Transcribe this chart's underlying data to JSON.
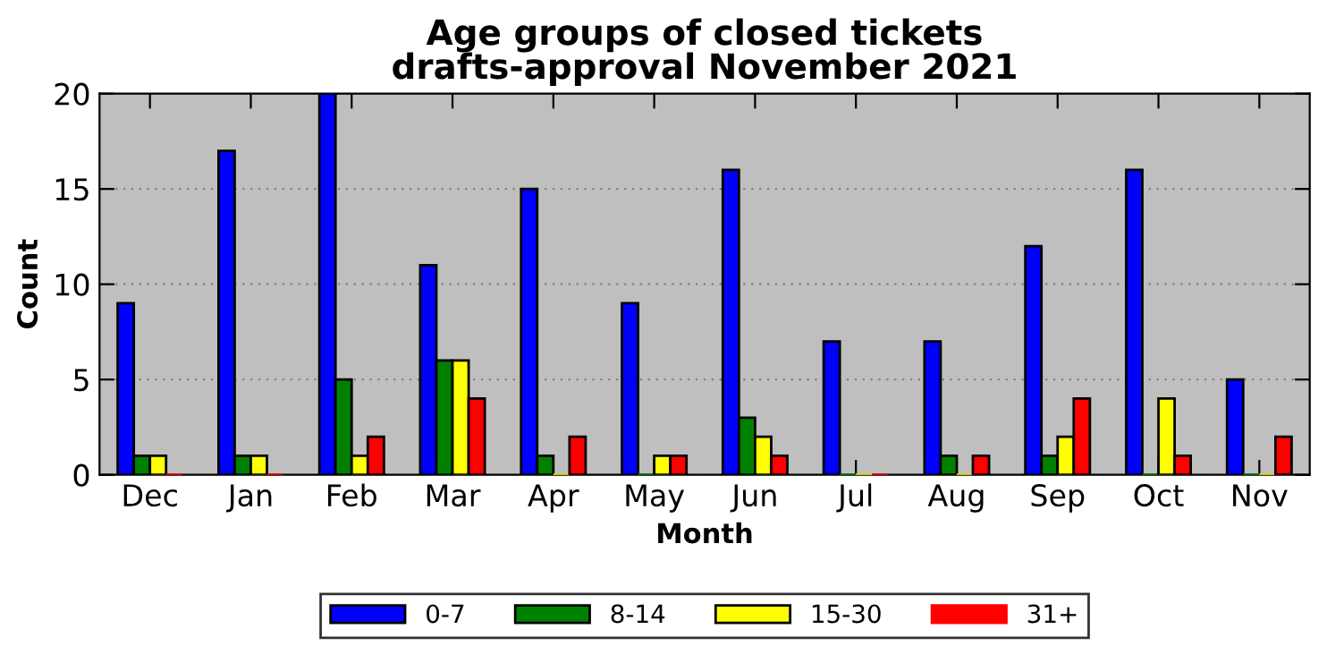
{
  "chart_data": {
    "type": "bar",
    "title": "Age groups of closed tickets\ndrafts-approval November 2021",
    "xlabel": "Month",
    "ylabel": "Count",
    "categories": [
      "Dec",
      "Jan",
      "Feb",
      "Mar",
      "Apr",
      "May",
      "Jun",
      "Jul",
      "Aug",
      "Sep",
      "Oct",
      "Nov"
    ],
    "series": [
      {
        "name": "0-7",
        "color": "#0000ff",
        "values": [
          9,
          17,
          20,
          11,
          15,
          9,
          16,
          7,
          7,
          12,
          16,
          5
        ]
      },
      {
        "name": "8-14",
        "color": "#008000",
        "values": [
          1,
          1,
          5,
          6,
          1,
          0,
          3,
          0,
          1,
          1,
          0,
          0
        ]
      },
      {
        "name": "15-30",
        "color": "#ffff00",
        "values": [
          1,
          1,
          1,
          6,
          0,
          1,
          2,
          0,
          0,
          2,
          4,
          0
        ]
      },
      {
        "name": "31+",
        "color": "#ff0000",
        "values": [
          0,
          0,
          2,
          4,
          2,
          1,
          1,
          0,
          1,
          4,
          1,
          2
        ]
      }
    ],
    "ylim": [
      0,
      20
    ],
    "yticks": [
      0,
      5,
      10,
      15,
      20
    ],
    "grid": "y",
    "legend": "bottom"
  }
}
